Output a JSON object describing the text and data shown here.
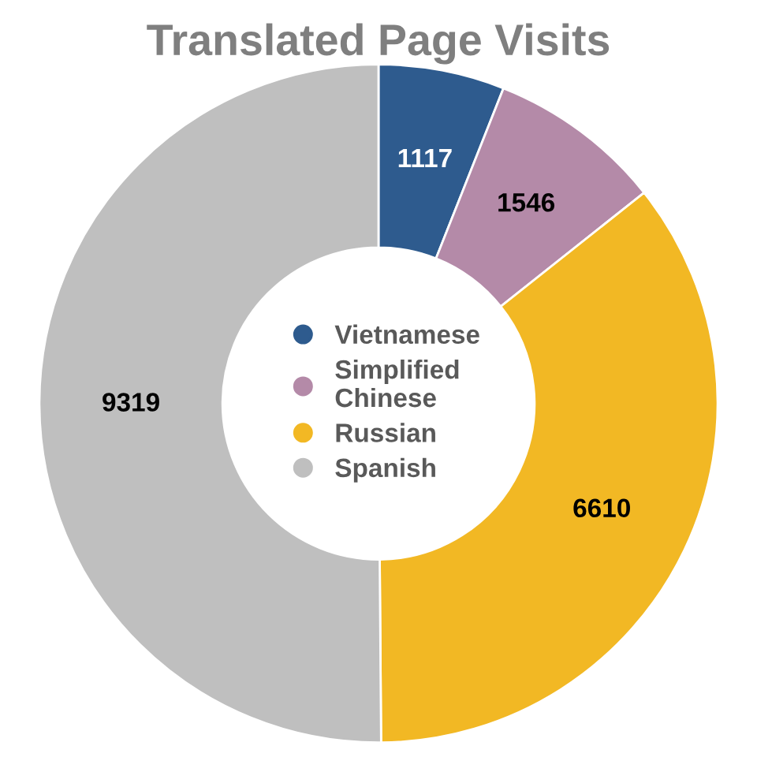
{
  "chart_data": {
    "type": "donut",
    "title": "Translated Page Visits",
    "categories": [
      "Vietnamese",
      "Simplified Chinese",
      "Russian",
      "Spanish"
    ],
    "values": [
      1117,
      1546,
      6610,
      9319
    ],
    "colors": [
      "#2e5b8e",
      "#b48aa8",
      "#f2b824",
      "#bfbfbf"
    ],
    "data_labels": true,
    "legend": "center"
  }
}
